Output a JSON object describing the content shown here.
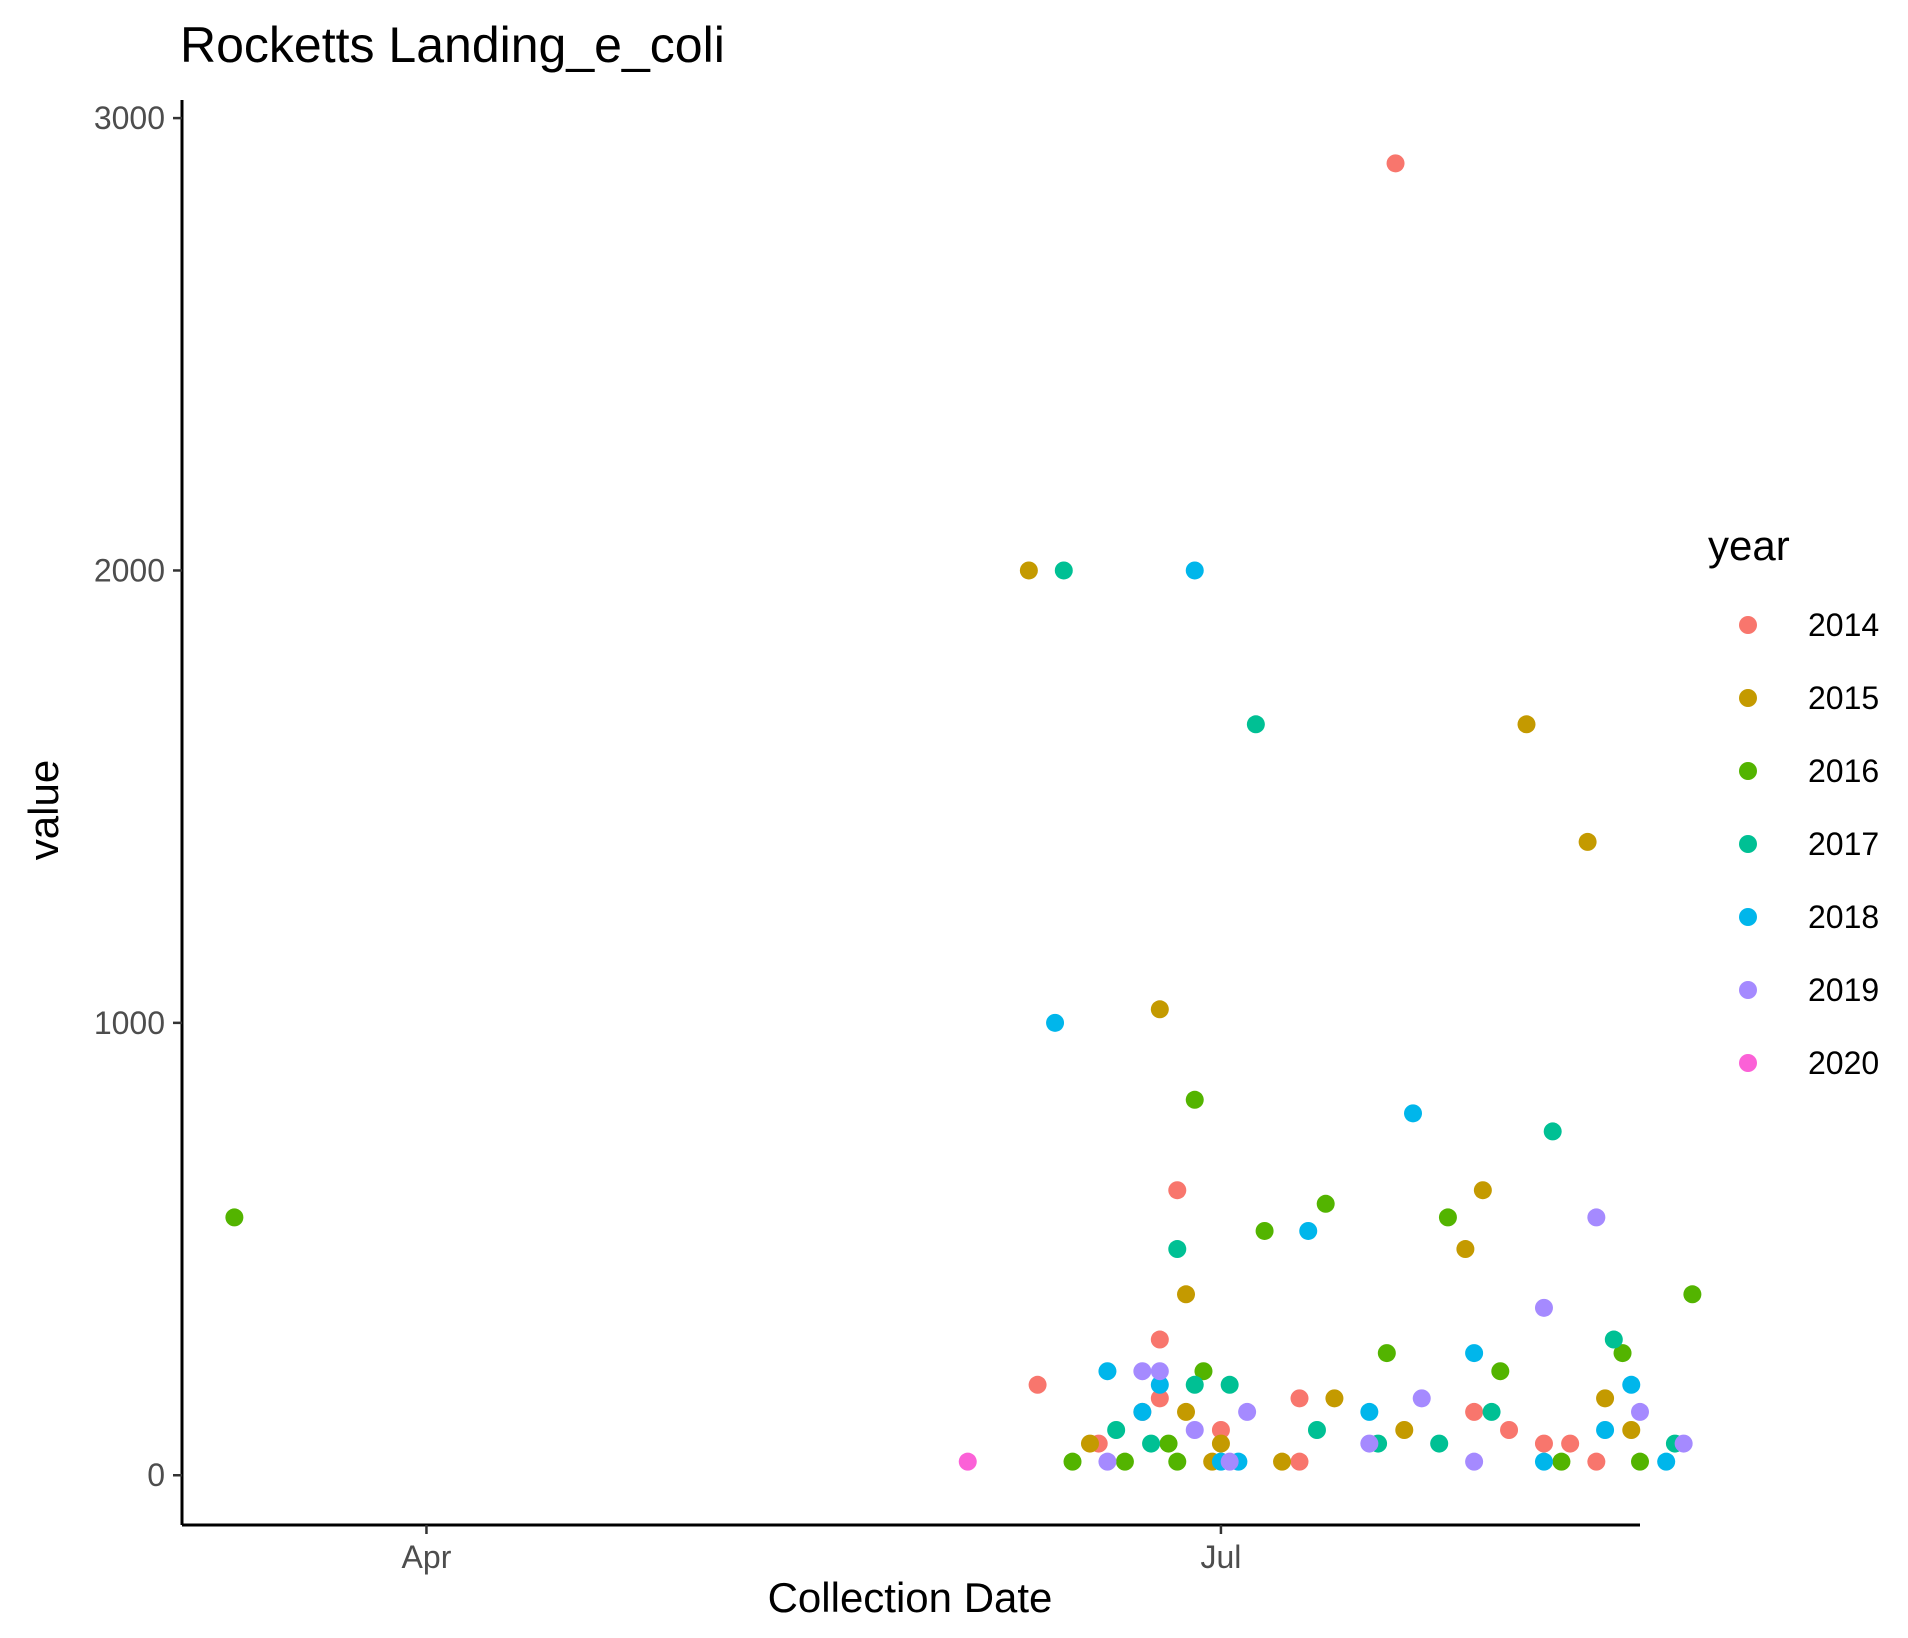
{
  "chart_data": {
    "type": "scatter",
    "title": "Rocketts Landing_e_coli",
    "xlabel": "Collection Date",
    "ylabel": "value",
    "x_ticks": [
      {
        "label": "Apr",
        "date": "04-01"
      },
      {
        "label": "Jul",
        "date": "07-01"
      }
    ],
    "y_ticks": [
      0,
      1000,
      2000,
      3000
    ],
    "xlim": [
      "03-04",
      "08-18"
    ],
    "ylim": [
      -110,
      3040
    ],
    "grid": false,
    "legend_title": "year",
    "legend_position": "right",
    "series": [
      {
        "name": "2014",
        "color": "#F8766D",
        "points": [
          {
            "x": "06-10",
            "y": 200
          },
          {
            "x": "06-17",
            "y": 70
          },
          {
            "x": "06-24",
            "y": 170
          },
          {
            "x": "06-24",
            "y": 300
          },
          {
            "x": "06-22",
            "y": 140
          },
          {
            "x": "06-26",
            "y": 630
          },
          {
            "x": "07-01",
            "y": 100
          },
          {
            "x": "07-10",
            "y": 170
          },
          {
            "x": "07-10",
            "y": 30
          },
          {
            "x": "07-21",
            "y": 2900
          },
          {
            "x": "07-30",
            "y": 140
          },
          {
            "x": "08-03",
            "y": 100
          },
          {
            "x": "08-07",
            "y": 70
          },
          {
            "x": "08-10",
            "y": 70
          },
          {
            "x": "08-13",
            "y": 30
          }
        ]
      },
      {
        "name": "2015",
        "color": "#C49A00",
        "points": [
          {
            "x": "06-09",
            "y": 2000
          },
          {
            "x": "06-16",
            "y": 70
          },
          {
            "x": "06-24",
            "y": 1030
          },
          {
            "x": "06-27",
            "y": 140
          },
          {
            "x": "06-27",
            "y": 400
          },
          {
            "x": "06-30",
            "y": 30
          },
          {
            "x": "07-01",
            "y": 70
          },
          {
            "x": "07-08",
            "y": 30
          },
          {
            "x": "07-14",
            "y": 170
          },
          {
            "x": "07-22",
            "y": 100
          },
          {
            "x": "07-29",
            "y": 500
          },
          {
            "x": "07-31",
            "y": 630
          },
          {
            "x": "08-05",
            "y": 1660
          },
          {
            "x": "08-12",
            "y": 1400
          },
          {
            "x": "08-14",
            "y": 170
          },
          {
            "x": "08-17",
            "y": 100
          }
        ]
      },
      {
        "name": "2016",
        "color": "#53B400",
        "points": [
          {
            "x": "03-10",
            "y": 570
          },
          {
            "x": "06-14",
            "y": 30
          },
          {
            "x": "06-20",
            "y": 30
          },
          {
            "x": "06-25",
            "y": 70
          },
          {
            "x": "06-26",
            "y": 30
          },
          {
            "x": "06-28",
            "y": 830
          },
          {
            "x": "06-29",
            "y": 230
          },
          {
            "x": "07-06",
            "y": 540
          },
          {
            "x": "07-13",
            "y": 600
          },
          {
            "x": "07-20",
            "y": 270
          },
          {
            "x": "07-27",
            "y": 570
          },
          {
            "x": "08-02",
            "y": 230
          },
          {
            "x": "08-09",
            "y": 30
          },
          {
            "x": "08-16",
            "y": 270
          },
          {
            "x": "08-18",
            "y": 30
          },
          {
            "x": "08-24",
            "y": 400
          }
        ]
      },
      {
        "name": "2017",
        "color": "#00C094",
        "points": [
          {
            "x": "06-13",
            "y": 2000
          },
          {
            "x": "06-19",
            "y": 100
          },
          {
            "x": "06-23",
            "y": 70
          },
          {
            "x": "06-26",
            "y": 500
          },
          {
            "x": "06-28",
            "y": 200
          },
          {
            "x": "07-02",
            "y": 200
          },
          {
            "x": "07-05",
            "y": 1660
          },
          {
            "x": "07-12",
            "y": 100
          },
          {
            "x": "07-19",
            "y": 70
          },
          {
            "x": "07-26",
            "y": 70
          },
          {
            "x": "08-01",
            "y": 140
          },
          {
            "x": "08-08",
            "y": 760
          },
          {
            "x": "08-15",
            "y": 300
          },
          {
            "x": "08-22",
            "y": 70
          }
        ]
      },
      {
        "name": "2018",
        "color": "#00B6EB",
        "points": [
          {
            "x": "06-12",
            "y": 1000
          },
          {
            "x": "06-18",
            "y": 230
          },
          {
            "x": "06-22",
            "y": 140
          },
          {
            "x": "06-24",
            "y": 200
          },
          {
            "x": "06-28",
            "y": 2000
          },
          {
            "x": "07-01",
            "y": 30
          },
          {
            "x": "07-03",
            "y": 30
          },
          {
            "x": "07-11",
            "y": 540
          },
          {
            "x": "07-18",
            "y": 140
          },
          {
            "x": "07-23",
            "y": 800
          },
          {
            "x": "07-30",
            "y": 270
          },
          {
            "x": "08-07",
            "y": 30
          },
          {
            "x": "08-14",
            "y": 100
          },
          {
            "x": "08-17",
            "y": 200
          },
          {
            "x": "08-21",
            "y": 30
          }
        ]
      },
      {
        "name": "2019",
        "color": "#A58AFF",
        "points": [
          {
            "x": "06-18",
            "y": 30
          },
          {
            "x": "06-22",
            "y": 230
          },
          {
            "x": "06-24",
            "y": 230
          },
          {
            "x": "06-28",
            "y": 100
          },
          {
            "x": "07-02",
            "y": 30
          },
          {
            "x": "07-04",
            "y": 140
          },
          {
            "x": "07-18",
            "y": 70
          },
          {
            "x": "07-24",
            "y": 170
          },
          {
            "x": "07-30",
            "y": 30
          },
          {
            "x": "08-07",
            "y": 370
          },
          {
            "x": "08-13",
            "y": 570
          },
          {
            "x": "08-18",
            "y": 140
          },
          {
            "x": "08-23",
            "y": 70
          }
        ]
      },
      {
        "name": "2020",
        "color": "#FB61D7",
        "points": [
          {
            "x": "06-02",
            "y": 30
          }
        ]
      }
    ]
  }
}
